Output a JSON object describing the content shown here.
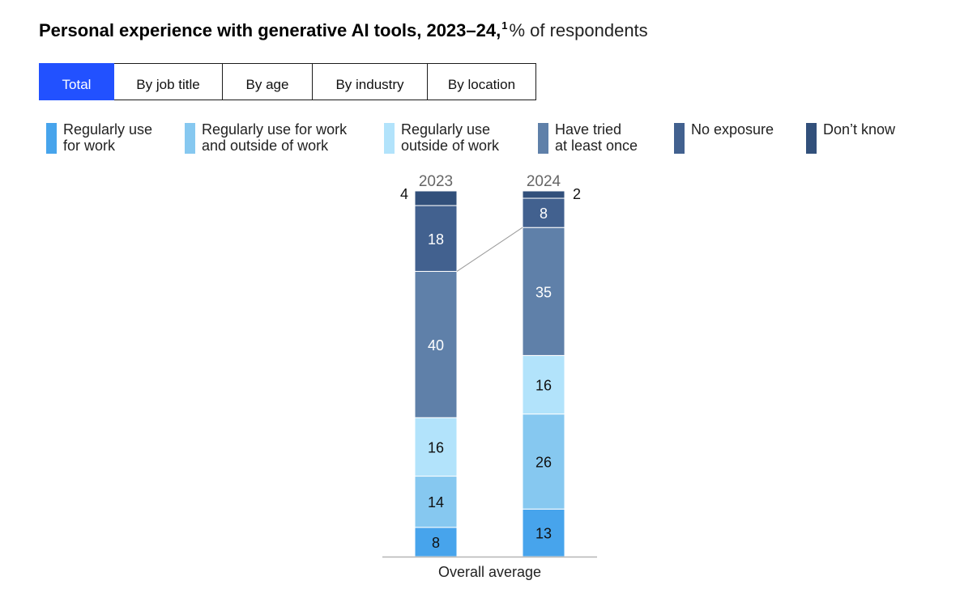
{
  "header": {
    "title_bold": "Personal experience with generative AI tools, 2023–24,",
    "footnote": "1",
    "title_unit": "% of respondents"
  },
  "tabs": [
    {
      "label": "Total",
      "active": true
    },
    {
      "label": "By job title",
      "active": false
    },
    {
      "label": "By age",
      "active": false
    },
    {
      "label": "By industry",
      "active": false
    },
    {
      "label": "By location",
      "active": false
    }
  ],
  "legend": [
    {
      "label": "Regularly use\nfor work",
      "color": "#47a4ec"
    },
    {
      "label": "Regularly use for work\nand outside of work",
      "color": "#86c8f0"
    },
    {
      "label": "Regularly use\noutside of work",
      "color": "#b2e3fb"
    },
    {
      "label": "Have tried\nat least once",
      "color": "#5f80a9"
    },
    {
      "label": "No exposure",
      "color": "#42618f"
    },
    {
      "label": "Don’t know",
      "color": "#32507b"
    }
  ],
  "chart_data": {
    "type": "bar",
    "stacked": true,
    "categories": [
      "2023",
      "2024"
    ],
    "series": [
      {
        "name": "Regularly use for work",
        "values": [
          8,
          13
        ],
        "color": "#47a4ec"
      },
      {
        "name": "Regularly use for work and outside of work",
        "values": [
          14,
          26
        ],
        "color": "#86c8f0"
      },
      {
        "name": "Regularly use outside of work",
        "values": [
          16,
          16
        ],
        "color": "#b2e3fb"
      },
      {
        "name": "Have tried at least once",
        "values": [
          40,
          35
        ],
        "color": "#5f80a9"
      },
      {
        "name": "No exposure",
        "values": [
          18,
          8
        ],
        "color": "#42618f"
      },
      {
        "name": "Don’t know",
        "values": [
          4,
          2
        ],
        "color": "#32507b"
      }
    ],
    "xlabel": "Overall average",
    "ylim": [
      0,
      100
    ],
    "grid": false,
    "legend_position": "top"
  }
}
